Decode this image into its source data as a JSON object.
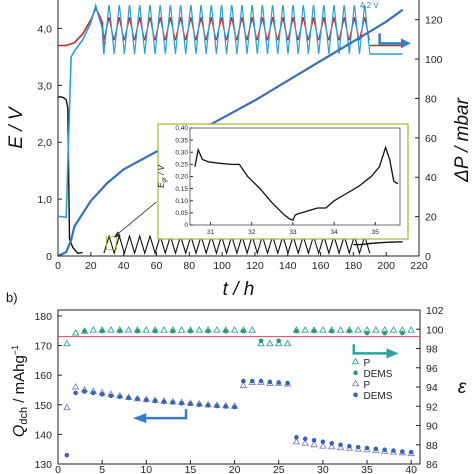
{
  "panel_a": {
    "panel_label": "",
    "note": "4.2 V",
    "chart_data": {
      "type": "line",
      "xlabel": "t / h",
      "ylabel_left": "E / V",
      "ylabel_right": "ΔP / mbar",
      "xlim": [
        0,
        220
      ],
      "ylim_left": [
        0,
        4.5
      ],
      "ylim_right": [
        0,
        130
      ],
      "x_ticks": [
        0,
        20,
        40,
        60,
        80,
        100,
        120,
        140,
        160,
        180,
        200,
        220
      ],
      "y_ticks_left": [
        "0",
        "1,0",
        "2,0",
        "3,0",
        "4,0"
      ],
      "y_ticks_right": [
        0,
        20,
        40,
        60,
        80,
        100,
        120
      ],
      "series": [
        {
          "color": "#111111",
          "x": [
            0,
            1,
            3,
            5,
            6,
            7,
            9,
            12,
            15,
            20,
            25,
            30,
            40,
            60,
            80,
            100,
            120,
            140,
            160,
            180,
            185,
            190,
            200,
            210
          ],
          "y": [
            2.78,
            2.8,
            2.79,
            2.75,
            2.6,
            0.3,
            0.15,
            0.05,
            0.06,
            0.08,
            0.1,
            0.18,
            0.2,
            0.2,
            0.2,
            0.2,
            0.2,
            0.2,
            0.2,
            0.2,
            0.2,
            0.22,
            0.24,
            0.25
          ]
        },
        {
          "color": "#c8232c",
          "x": [
            0,
            5,
            10,
            15,
            20,
            23,
            25,
            27,
            28,
            190,
            200,
            210
          ],
          "y": [
            3.7,
            3.7,
            3.75,
            3.9,
            4.15,
            4.35,
            4.25,
            4.1,
            3.7,
            3.7,
            3.7,
            3.7
          ]
        },
        {
          "color": "#2a9fcf",
          "x": [
            0,
            5,
            8,
            10,
            15,
            20,
            23,
            25,
            27,
            28
          ],
          "y": [
            0.7,
            0.68,
            3.5,
            3.6,
            3.8,
            4.1,
            4.4,
            4.2,
            4.0,
            3.55
          ]
        },
        {
          "color": "#3a6fb5",
          "x": [
            0,
            5,
            8,
            10,
            20,
            30,
            40,
            60,
            80,
            100,
            120,
            140,
            160,
            180,
            200,
            210
          ],
          "y": [
            0,
            2,
            8,
            15,
            28,
            37,
            44,
            53,
            61,
            70,
            79,
            89,
            99,
            109,
            119,
            125
          ]
        }
      ],
      "cycling": {
        "x_start": 28,
        "x_end": 190,
        "cycles": 26,
        "upper_E": 4.4,
        "lower_E": 3.55,
        "red_high": 4.15,
        "red_low": 3.8,
        "black_osc_low": 0.05,
        "black_osc_high": 0.35
      }
    },
    "inset": {
      "ylabel": "E",
      "ylabel_sub": "gr",
      "ylabel_unit": " / V",
      "xlim": [
        30.5,
        35.6
      ],
      "ylim": [
        0,
        0.4
      ],
      "x_ticks": [
        31,
        32,
        33,
        34,
        35
      ],
      "y_ticks": [
        "0",
        "0,05",
        "0,10",
        "0,15",
        "0,20",
        "0,25",
        "0,30",
        "0,35",
        "0,40"
      ],
      "x": [
        30.62,
        30.7,
        30.8,
        30.95,
        31.2,
        31.5,
        31.7,
        31.9,
        32.2,
        32.5,
        32.8,
        32.92,
        33.0,
        33.05,
        33.1,
        33.2,
        33.4,
        33.6,
        33.8,
        34.0,
        34.3,
        34.6,
        34.9,
        35.1,
        35.25,
        35.35,
        35.45,
        35.55
      ],
      "y": [
        0.24,
        0.31,
        0.27,
        0.26,
        0.255,
        0.25,
        0.25,
        0.2,
        0.15,
        0.09,
        0.04,
        0.025,
        0.02,
        0.04,
        0.045,
        0.05,
        0.06,
        0.07,
        0.07,
        0.1,
        0.13,
        0.16,
        0.2,
        0.24,
        0.32,
        0.27,
        0.18,
        0.17
      ]
    }
  },
  "panel_b": {
    "panel_label": "b)",
    "chart_data": {
      "type": "scatter",
      "xlabel": "",
      "ylabel_left_main": "Q",
      "ylabel_left_sub": "dch",
      "ylabel_left_unit": " / mAhg",
      "ylabel_left_sup": "−1",
      "ylabel_right": "ε",
      "xlim": [
        0,
        41
      ],
      "ylim_left": [
        130,
        182
      ],
      "ylim_right": [
        86,
        102
      ],
      "x_ticks": [
        0,
        5,
        10,
        15,
        20,
        25,
        30,
        35,
        40
      ],
      "y_ticks_left": [
        130,
        140,
        150,
        160,
        170,
        180
      ],
      "y_ticks_right": [
        86,
        88,
        90,
        92,
        94,
        96,
        98,
        100,
        102
      ],
      "reference_line_left": 173,
      "legend": [
        "P",
        "DEMS",
        "P",
        "DEMS"
      ],
      "series": [
        {
          "name": "P",
          "axis": "right",
          "marker": "open-triangle",
          "color": "#2fa39a",
          "x": [
            1,
            2,
            3,
            4,
            5,
            6,
            7,
            8,
            9,
            10,
            11,
            12,
            13,
            14,
            15,
            16,
            17,
            18,
            19,
            20,
            21,
            22,
            23,
            24,
            25,
            26,
            27,
            28,
            29,
            30,
            31,
            32,
            33,
            34,
            35,
            36,
            37,
            38,
            39,
            40
          ],
          "values": [
            98.5,
            99.6,
            99.8,
            99.9,
            99.9,
            99.9,
            99.9,
            99.9,
            99.9,
            99.9,
            99.9,
            99.9,
            99.9,
            99.9,
            99.9,
            99.9,
            99.9,
            99.9,
            99.9,
            99.9,
            99.9,
            99.9,
            98.5,
            98.5,
            98.5,
            98.5,
            99.9,
            99.9,
            99.9,
            99.9,
            99.9,
            99.9,
            99.9,
            99.9,
            99.9,
            99.9,
            99.9,
            99.9,
            99.9,
            99.9
          ]
        },
        {
          "name": "DEMS",
          "axis": "right",
          "marker": "filled-circle",
          "color": "#2f9c6c",
          "x": [
            3,
            5,
            7,
            9,
            11,
            13,
            15,
            17,
            19,
            21,
            23,
            25,
            27,
            29,
            31,
            33,
            35,
            37,
            39
          ],
          "values": [
            99.8,
            99.8,
            99.8,
            99.8,
            99.8,
            99.8,
            99.8,
            99.8,
            99.8,
            99.8,
            98.8,
            98.8,
            99.8,
            99.8,
            99.8,
            99.8,
            99.6,
            99.6,
            99.6
          ]
        },
        {
          "name": "P",
          "axis": "left",
          "marker": "open-triangle",
          "color": "#7c83bf",
          "x": [
            1,
            2,
            3,
            4,
            5,
            6,
            7,
            8,
            9,
            10,
            11,
            12,
            13,
            14,
            15,
            16,
            17,
            18,
            19,
            20,
            21,
            22,
            23,
            24,
            25,
            26,
            27,
            28,
            29,
            30,
            31,
            32,
            33,
            34,
            35,
            36,
            37,
            38,
            39,
            40
          ],
          "values": [
            149,
            156,
            155,
            154.5,
            154,
            153.5,
            153,
            152.5,
            152,
            151.8,
            151.5,
            151.2,
            151,
            150.8,
            150.5,
            150.3,
            150,
            149.8,
            149.6,
            149.5,
            156.5,
            157.5,
            157.5,
            157.2,
            157.2,
            157,
            137.5,
            137,
            136.5,
            136,
            135.8,
            135.5,
            135.3,
            135,
            134.8,
            134.5,
            134.3,
            134,
            133.8,
            133.5
          ]
        },
        {
          "name": "DEMS",
          "axis": "left",
          "marker": "filled-circle",
          "color": "#3a63b0",
          "x": [
            1,
            2,
            3,
            4,
            5,
            6,
            7,
            8,
            9,
            10,
            11,
            12,
            13,
            14,
            15,
            16,
            17,
            18,
            19,
            20,
            21,
            22,
            23,
            24,
            25,
            26,
            27,
            28,
            29,
            30,
            31,
            32,
            33,
            34,
            35,
            36,
            37,
            38,
            39,
            40
          ],
          "values": [
            133,
            154,
            154.5,
            154,
            153.5,
            153,
            152.7,
            152.3,
            152,
            151.6,
            151.3,
            151,
            150.8,
            150.5,
            150.3,
            150,
            149.8,
            149.6,
            149.4,
            149.2,
            158,
            158,
            158,
            157.7,
            157.5,
            157.3,
            139,
            138.5,
            138,
            137.5,
            137,
            136.5,
            136,
            135.7,
            135.4,
            135.1,
            134.8,
            134.5,
            134.2,
            134
          ]
        }
      ],
      "arrows": [
        {
          "axis": "left",
          "direction": "left",
          "color": "#3a7bc8"
        },
        {
          "axis": "right",
          "direction": "right",
          "color": "#2fa39a"
        }
      ]
    }
  }
}
